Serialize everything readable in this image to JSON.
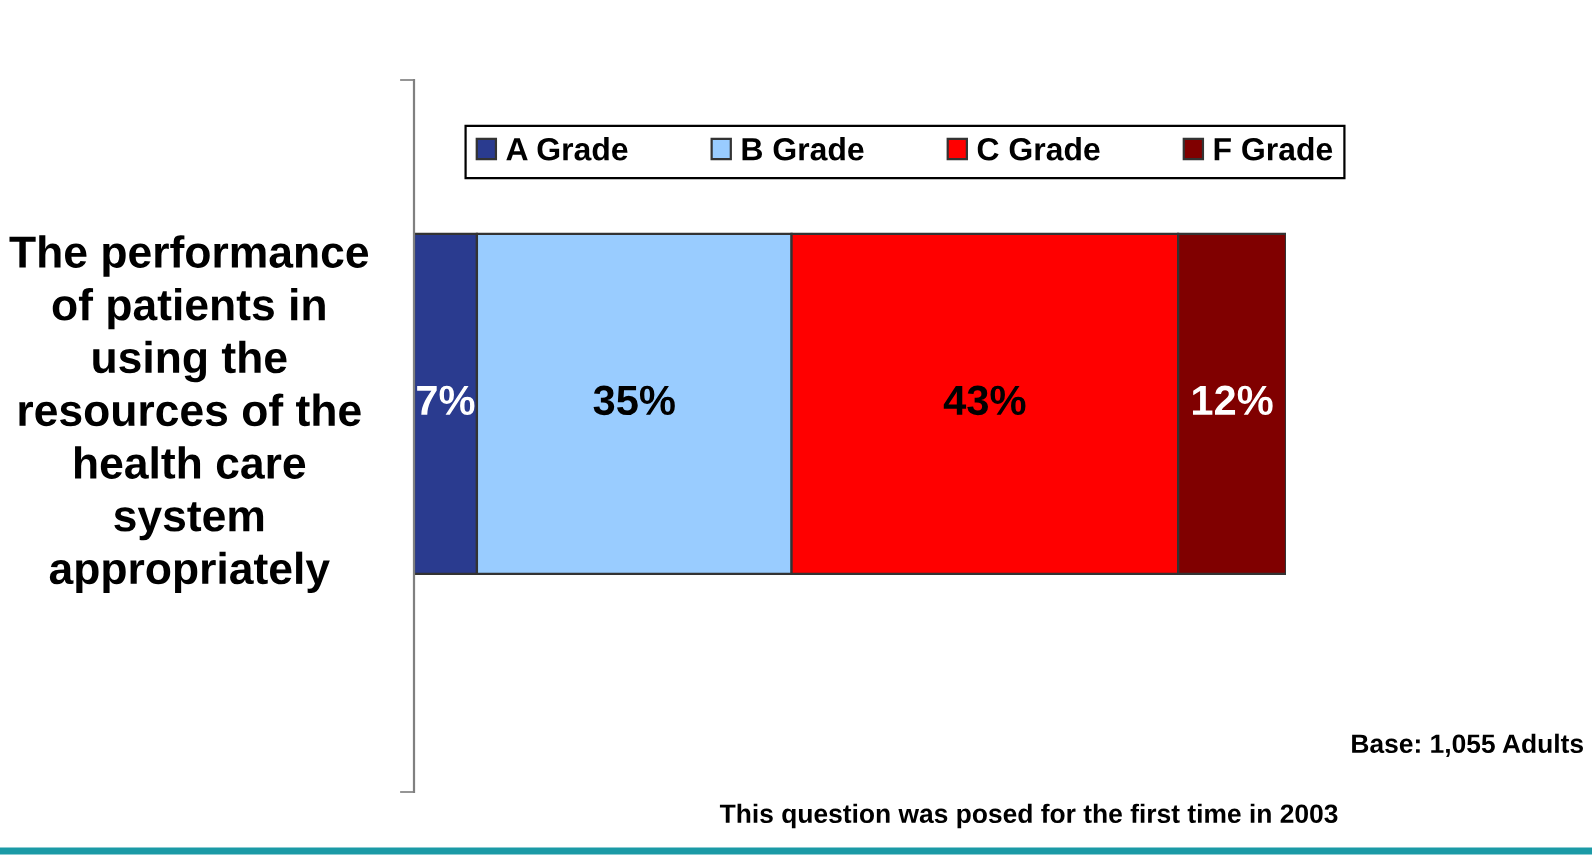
{
  "chart_data": {
    "type": "bar",
    "orientation": "horizontal",
    "stacked": true,
    "categories": [
      "The performance\nof patients in\nusing the\nresources of the\nhealth care\nsystem\nappropriately"
    ],
    "series": [
      {
        "name": "A Grade",
        "color": "#2a3b8f",
        "values": [
          7
        ],
        "value_labels": [
          "7%"
        ]
      },
      {
        "name": "B Grade",
        "color": "#99ccff",
        "values": [
          35
        ],
        "value_labels": [
          "35%"
        ]
      },
      {
        "name": "C Grade",
        "color": "#ff0000",
        "values": [
          43
        ],
        "value_labels": [
          "43%"
        ]
      },
      {
        "name": "F Grade",
        "color": "#800000",
        "values": [
          12
        ],
        "value_labels": [
          "12%"
        ]
      }
    ],
    "legend": "top",
    "tick_labels": "y",
    "annotations": [
      "Base: 1,055 Adults",
      "This question was posed for the first time in 2003"
    ]
  }
}
